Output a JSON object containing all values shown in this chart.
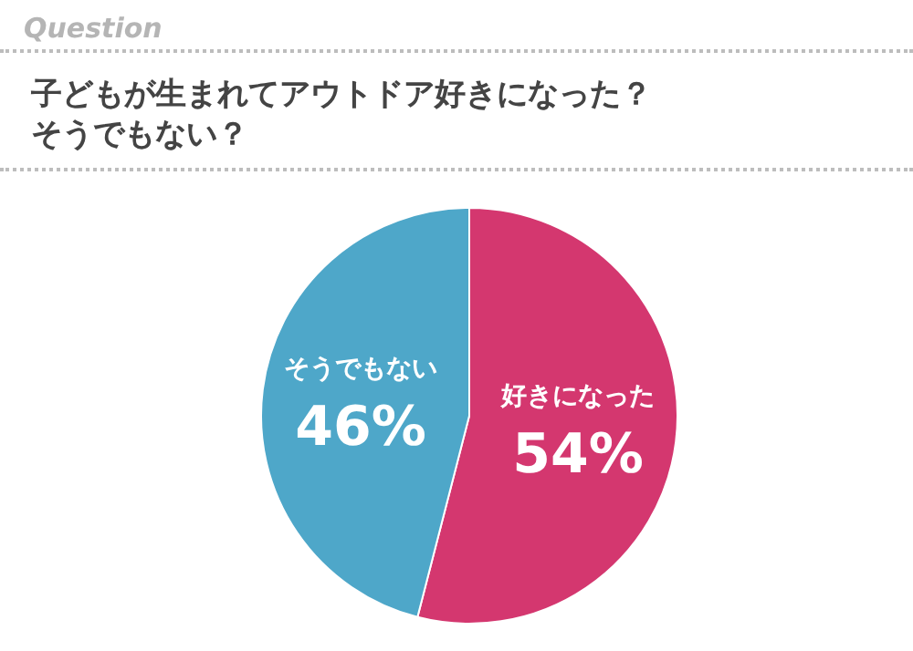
{
  "chart_data": {
    "type": "pie",
    "title": "子どもが生まれてアウトドア好きになった？そうでもない？",
    "annotations": [
      "Question"
    ],
    "categories": [
      "好きになった",
      "そうでもない"
    ],
    "values": [
      54,
      46
    ],
    "value_labels": [
      "54%",
      "46%"
    ],
    "colors": [
      "#d4376f",
      "#4ea7c9"
    ],
    "legend": false
  }
}
